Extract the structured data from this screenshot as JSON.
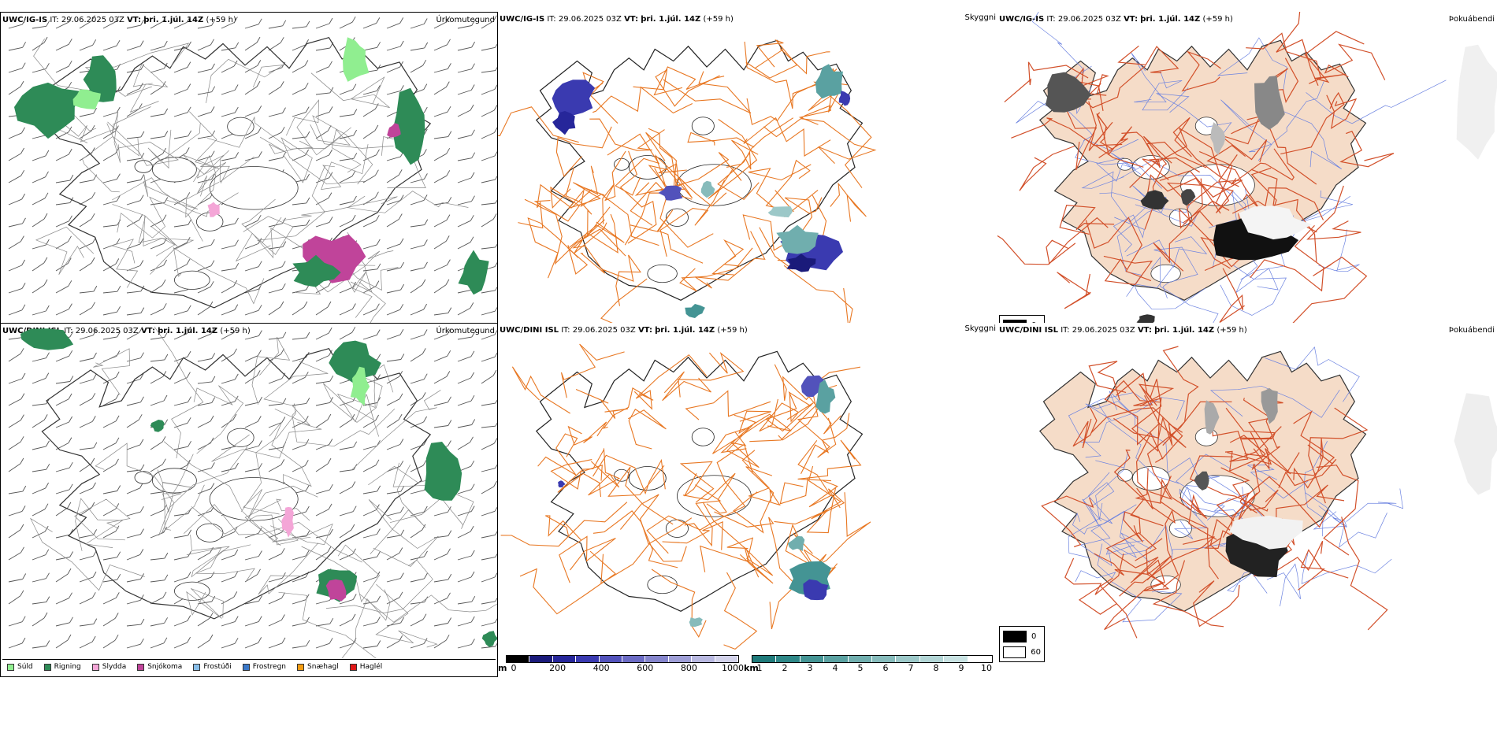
{
  "rows": [
    {
      "model": "UWC/IG-IS",
      "it_label": "IT:",
      "it_value": "29.06.2025 03Z",
      "vt_label": "VT:",
      "vt_value": "þri. 1.júl. 14Z",
      "lead": "(+59 h)",
      "precip_title": "Úrkomutegund",
      "vis_title": "Skyggni",
      "fog_title": "Þokuábendi"
    },
    {
      "model": "UWC/DINI ISL",
      "it_label": "IT:",
      "it_value": "29.06.2025 03Z",
      "vt_label": "VT:",
      "vt_value": "þri. 1.júl. 14Z",
      "lead": "(+59 h)",
      "precip_title": "Úrkomutegund",
      "vis_title": "Skyggni",
      "fog_title": "Þokuábendi"
    }
  ],
  "precip_legend": [
    {
      "label": "Súld",
      "color": "#90ee90"
    },
    {
      "label": "Rigning",
      "color": "#2e8b57"
    },
    {
      "label": "Slydda",
      "color": "#f4a6d7"
    },
    {
      "label": "Snjókoma",
      "color": "#c0449a"
    },
    {
      "label": "Frostúði",
      "color": "#87bde8"
    },
    {
      "label": "Frostregn",
      "color": "#3a78c9"
    },
    {
      "label": "Snæhagl",
      "color": "#f39c12"
    },
    {
      "label": "Haglél",
      "color": "#e01818"
    }
  ],
  "ceiling_colorbar": {
    "unit": "m",
    "ticks": [
      "0",
      "200",
      "400",
      "600",
      "800",
      "1000"
    ],
    "colors": [
      "#000000",
      "#1a1a7a",
      "#26269a",
      "#3a3ab0",
      "#5252bb",
      "#6b6bc4",
      "#8585cc",
      "#9e9ed6",
      "#b8b8e0",
      "#d2d2ea"
    ]
  },
  "visibility_colorbar": {
    "unit": "km",
    "ticks": [
      "1",
      "2",
      "3",
      "4",
      "5",
      "6",
      "7",
      "8",
      "9",
      "10"
    ],
    "colors": [
      "#1f7a7a",
      "#2e8787",
      "#449494",
      "#5aa1a1",
      "#70aeae",
      "#86bbbb",
      "#9cc8c8",
      "#b2d5d5",
      "#c8e2e2",
      "#ffffff"
    ]
  },
  "fog_legend": [
    {
      "value": "0",
      "color": "#000000"
    },
    {
      "value": "60",
      "color": "#ffffff"
    }
  ],
  "map_colors": {
    "road": "#e87722",
    "road_dark": "#d2502a",
    "land_fog": "#f5dcc8",
    "coast": "#222222",
    "river": "#6b82e0",
    "wind": "#555555"
  }
}
